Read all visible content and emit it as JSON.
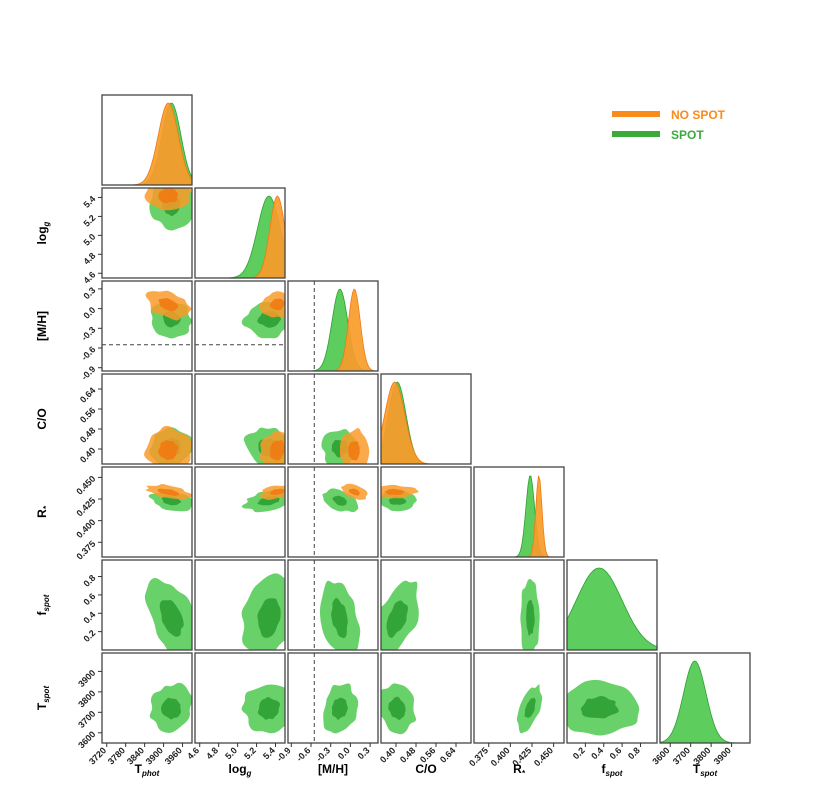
{
  "chart_data": {
    "type": "corner",
    "colors": {
      "no_spot": "#F99B2A",
      "spot": "#4FC94F",
      "no_spot_dark": "#F07A12",
      "spot_dark": "#2E9E33"
    },
    "legend": [
      {
        "label": "NO SPOT",
        "color": "#F98A1C"
      },
      {
        "label": "SPOT",
        "color": "#3BAA3B"
      }
    ],
    "params": [
      {
        "base": "T",
        "sub": "phot",
        "ylabel_base": "T",
        "ylabel_sub": "phot",
        "range": [
          3705,
          3990
        ],
        "ticks": [
          "3720",
          "3780",
          "3840",
          "3900",
          "3960"
        ],
        "tickvals": [
          3720,
          3780,
          3840,
          3900,
          3960
        ],
        "no_spot": {
          "mean": 3915,
          "sd": 32
        },
        "spot": {
          "mean": 3925,
          "sd": 30
        }
      },
      {
        "base": "log",
        "sub": "g",
        "ylabel_base": "log",
        "ylabel_sub": "g",
        "range": [
          4.55,
          5.5
        ],
        "ticks": [
          "4.6",
          "4.8",
          "5.0",
          "5.2",
          "5.4"
        ],
        "tickvals": [
          4.6,
          4.8,
          5.0,
          5.2,
          5.4
        ],
        "no_spot": {
          "mean": 5.42,
          "sd": 0.08
        },
        "spot": {
          "mean": 5.33,
          "sd": 0.12
        }
      },
      {
        "base": "[M/H]",
        "sub": "",
        "ylabel_base": "[M/H]",
        "ylabel_sub": "",
        "range": [
          -0.95,
          0.42
        ],
        "ticks": [
          "-0.9",
          "-0.6",
          "-0.3",
          "0.0",
          "0.3"
        ],
        "tickvals": [
          -0.9,
          -0.6,
          -0.3,
          0.0,
          0.3
        ],
        "no_spot": {
          "mean": 0.06,
          "sd": 0.09
        },
        "spot": {
          "mean": -0.16,
          "sd": 0.12
        },
        "dashed": -0.55
      },
      {
        "base": "C/O",
        "sub": "",
        "ylabel_base": "C/O",
        "ylabel_sub": "",
        "range": [
          0.34,
          0.7
        ],
        "ticks": [
          "0.40",
          "0.48",
          "0.56",
          "0.64"
        ],
        "tickvals": [
          0.4,
          0.48,
          0.56,
          0.64
        ],
        "no_spot": {
          "mean": 0.395,
          "sd": 0.04
        },
        "spot": {
          "mean": 0.405,
          "sd": 0.035
        }
      },
      {
        "base": "R",
        "sub": "*",
        "ylabel_base": "R",
        "ylabel_sub": "*",
        "range": [
          0.358,
          0.462
        ],
        "ticks": [
          "0.375",
          "0.400",
          "0.425",
          "0.450"
        ],
        "tickvals": [
          0.375,
          0.4,
          0.425,
          0.45
        ],
        "no_spot": {
          "mean": 0.433,
          "sd": 0.0035
        },
        "spot": {
          "mean": 0.423,
          "sd": 0.005
        }
      },
      {
        "base": "f",
        "sub": "spot",
        "ylabel_base": "f",
        "ylabel_sub": "spot",
        "range": [
          0.0,
          0.98
        ],
        "ticks": [
          "0.2",
          "0.4",
          "0.6",
          "0.8"
        ],
        "tickvals": [
          0.2,
          0.4,
          0.6,
          0.8
        ],
        "spot": {
          "mean": 0.35,
          "sd": 0.25
        }
      },
      {
        "base": "T",
        "sub": "spot",
        "ylabel_base": "T",
        "ylabel_sub": "spot",
        "range": [
          3550,
          3990
        ],
        "ticks": [
          "3600",
          "3700",
          "3800",
          "3900"
        ],
        "tickvals": [
          3600,
          3700,
          3800,
          3900
        ],
        "spot": {
          "mean": 3720,
          "sd": 55
        }
      }
    ]
  }
}
